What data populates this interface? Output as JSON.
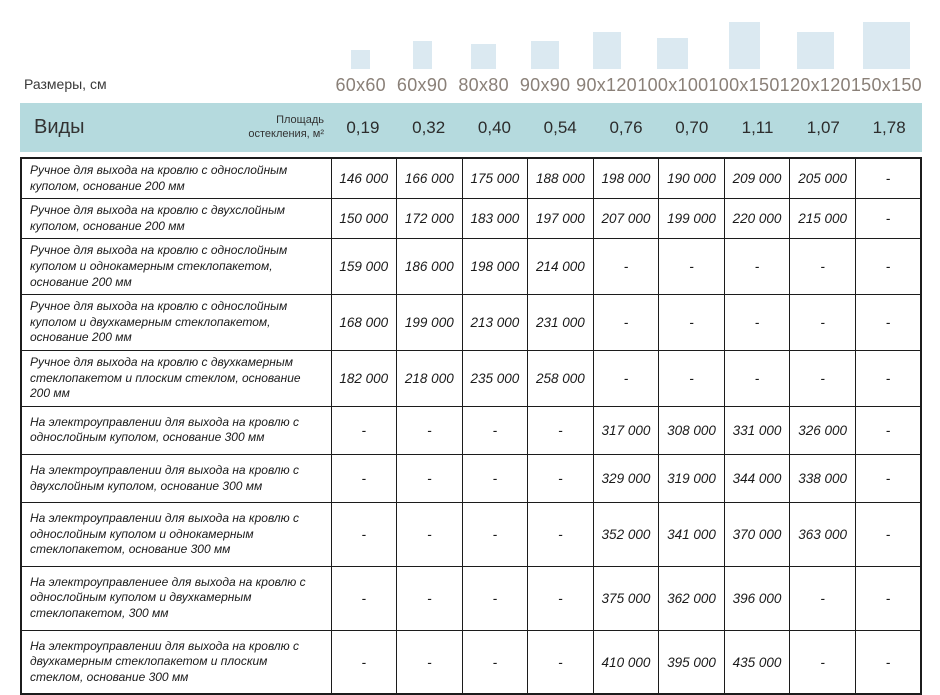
{
  "page": {
    "sizes_caption": "Размеры, см",
    "types_heading": "Виды",
    "area_line1": "Площадь",
    "area_line2": "остекления, м²",
    "colors": {
      "band": "#b5dade",
      "square": "#dbe9f1",
      "size_label_text": "#8a8078",
      "border": "#1c1c1c"
    }
  },
  "columns": [
    {
      "size": "60x60",
      "area": "0,19"
    },
    {
      "size": "60x90",
      "area": "0,32"
    },
    {
      "size": "80x80",
      "area": "0,40"
    },
    {
      "size": "90x90",
      "area": "0,54"
    },
    {
      "size": "90x120",
      "area": "0,76"
    },
    {
      "size": "100x100",
      "area": "0,70"
    },
    {
      "size": "100x150",
      "area": "1,11"
    },
    {
      "size": "120x120",
      "area": "1,07"
    },
    {
      "size": "150x150",
      "area": "1,78"
    }
  ],
  "table_data": {
    "type": "table",
    "rows": [
      {
        "label": "Ручное для выхода на кровлю с однослойным куполом, основание 200 мм",
        "prices": [
          "146 000",
          "166 000",
          "175 000",
          "188 000",
          "198 000",
          "190 000",
          "209 000",
          "205 000",
          "-"
        ]
      },
      {
        "label": "Ручное для выхода на кровлю с двухслойным куполом, основание 200 мм",
        "prices": [
          "150 000",
          "172 000",
          "183 000",
          "197 000",
          "207 000",
          "199 000",
          "220 000",
          "215 000",
          "-"
        ]
      },
      {
        "label": "Ручное для выхода на кровлю с однослойным куполом и однокамерным стеклопакетом, основание 200 мм",
        "prices": [
          "159 000",
          "186 000",
          "198 000",
          "214 000",
          "-",
          "-",
          "-",
          "-",
          "-"
        ]
      },
      {
        "label": "Ручное для выхода на кровлю с однослойным куполом и двухкамерным стеклопакетом, основание 200 мм",
        "prices": [
          "168 000",
          "199 000",
          "213 000",
          "231 000",
          "-",
          "-",
          "-",
          "-",
          "-"
        ]
      },
      {
        "label": "Ручное для выхода на кровлю с двухкамерным стеклопакетом и плоским стеклом, основание 200 мм",
        "prices": [
          "182 000",
          "218 000",
          "235 000",
          "258 000",
          "-",
          "-",
          "-",
          "-",
          "-"
        ]
      },
      {
        "label": "На электроуправлении для выхода на кровлю с однослойным куполом, основание 300 мм",
        "prices": [
          "-",
          "-",
          "-",
          "-",
          "317 000",
          "308 000",
          "331 000",
          "326 000",
          "-"
        ]
      },
      {
        "label": "На электроуправлении для выхода на кровлю с двухслойным куполом, основание 300 мм",
        "prices": [
          "-",
          "-",
          "-",
          "-",
          "329 000",
          "319 000",
          "344 000",
          "338 000",
          "-"
        ]
      },
      {
        "label": "На электроуправлении для выхода на кровлю с однослойным куполом и однокамерным стеклопакетом, основание 300 мм",
        "prices": [
          "-",
          "-",
          "-",
          "-",
          "352 000",
          "341 000",
          "370 000",
          "363 000",
          "-"
        ]
      },
      {
        "label": "На электроуправлениее для выхода на кровлю с однослойным куполом и двухкамерным стеклопакетом, 300  мм",
        "prices": [
          "-",
          "-",
          "-",
          "-",
          "375 000",
          "362 000",
          "396 000",
          "-",
          "-"
        ]
      },
      {
        "label": "На электроуправлении для выхода на кровлю с двухкамерным стеклопакетом и плоским стеклом, основание 300 мм",
        "prices": [
          "-",
          "-",
          "-",
          "-",
          "410 000",
          "395 000",
          "435 000",
          "-",
          "-"
        ]
      }
    ]
  }
}
